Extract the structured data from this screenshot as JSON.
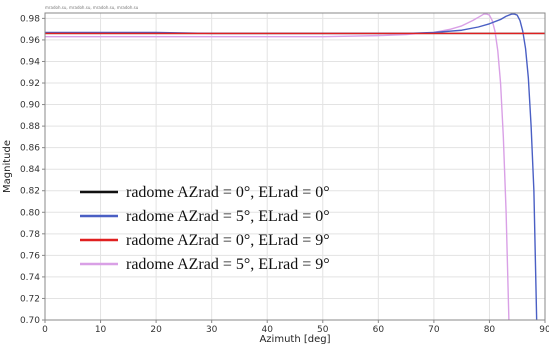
{
  "header_text": "mradoh.su, mradoh.su, mradoh.su, mradoh.su",
  "chart_data": {
    "type": "line",
    "title": "",
    "xlabel": "Azimuth [deg]",
    "ylabel": "Magnitude",
    "xlim": [
      0,
      90
    ],
    "ylim": [
      0.7,
      0.985
    ],
    "x_ticks": [
      0,
      10,
      20,
      30,
      40,
      50,
      60,
      70,
      80,
      90
    ],
    "y_ticks": [
      0.7,
      0.72,
      0.74,
      0.76,
      0.78,
      0.8,
      0.82,
      0.84,
      0.86,
      0.88,
      0.9,
      0.92,
      0.94,
      0.96,
      0.98
    ],
    "grid": true,
    "legend_position": "lower-left",
    "series": [
      {
        "name": "radome AZrad = 0°, ELrad = 0°",
        "color": "#111111",
        "x": [
          0,
          10,
          20,
          30,
          40,
          50,
          60,
          70,
          80,
          85,
          90
        ],
        "y": [
          0.966,
          0.966,
          0.966,
          0.966,
          0.966,
          0.966,
          0.966,
          0.966,
          0.966,
          0.966,
          0.966
        ]
      },
      {
        "name": "radome AZrad = 5°, ELrad = 0°",
        "color": "#4a5fc4",
        "x": [
          0,
          10,
          20,
          30,
          40,
          50,
          60,
          65,
          70,
          75,
          78,
          80,
          82,
          83,
          84,
          84.5,
          85,
          85.5,
          86,
          86.5,
          87,
          87.5,
          88,
          88.5
        ],
        "y": [
          0.967,
          0.967,
          0.967,
          0.966,
          0.966,
          0.966,
          0.966,
          0.966,
          0.967,
          0.969,
          0.972,
          0.975,
          0.979,
          0.982,
          0.984,
          0.984,
          0.983,
          0.978,
          0.968,
          0.952,
          0.925,
          0.88,
          0.82,
          0.7
        ]
      },
      {
        "name": "radome AZrad = 0°, ELrad = 9°",
        "color": "#e02020",
        "x": [
          0,
          10,
          20,
          30,
          40,
          50,
          60,
          70,
          80,
          85,
          90
        ],
        "y": [
          0.966,
          0.966,
          0.966,
          0.966,
          0.966,
          0.966,
          0.966,
          0.966,
          0.966,
          0.966,
          0.966
        ]
      },
      {
        "name": "radome AZrad = 5°, ELrad = 9°",
        "color": "#d9a0e6",
        "x": [
          0,
          10,
          20,
          30,
          40,
          50,
          60,
          65,
          70,
          73,
          75,
          77,
          78,
          79,
          79.5,
          80,
          80.5,
          81,
          81.5,
          82,
          82.5,
          83,
          83.5
        ],
        "y": [
          0.963,
          0.963,
          0.963,
          0.963,
          0.963,
          0.963,
          0.964,
          0.965,
          0.967,
          0.97,
          0.973,
          0.978,
          0.981,
          0.984,
          0.984,
          0.983,
          0.978,
          0.968,
          0.95,
          0.92,
          0.87,
          0.8,
          0.7
        ]
      }
    ]
  }
}
